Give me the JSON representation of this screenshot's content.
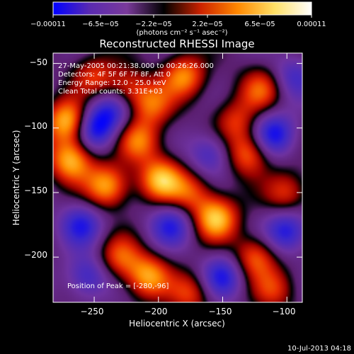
{
  "chart_data": {
    "type": "heatmap",
    "title": "Reconstructed RHESSI Image",
    "xlabel": "Heliocentric X (arcsec)",
    "ylabel": "Heliocentric Y (arcsec)",
    "xlim": [
      -282,
      -88
    ],
    "ylim": [
      -235,
      -42
    ],
    "xticks": [
      -250,
      -200,
      -150,
      -100
    ],
    "xtick_labels": [
      "−250",
      "−200",
      "−150",
      "−100"
    ],
    "yticks": [
      -50,
      -100,
      -150,
      -200
    ],
    "ytick_labels": [
      "−50",
      "−100",
      "−150",
      "−200"
    ],
    "colorbar": {
      "min": -0.00011,
      "max": 0.00011,
      "tick_labels": [
        "−0.00011",
        "−6.5e−05",
        "−2.2e−05",
        "2.2e−05",
        "6.5e−05",
        "0.00011"
      ],
      "unit_label": "(photons cm⁻² s⁻¹ asec⁻²)",
      "colors": [
        "#0000ff",
        "#5a2ab0",
        "#7a3a9a",
        "#000000",
        "#cc2200",
        "#ff8800",
        "#ffe066",
        "#ffffff"
      ]
    },
    "annotations": [
      "27-May-2005 00:21:38.000 to 00:26:26.000",
      "Detectors: 4F 5F 6F 7F 8F, Att 0",
      "Energy Range: 12.0 - 25.0 keV",
      "Clean    Total counts: 3.31E+03"
    ],
    "peak_label": "Position of Peak = [-280,-96]",
    "peak": [
      -280,
      -96
    ],
    "blobs": [
      {
        "x": -270,
        "y": -95,
        "v": 1.0
      },
      {
        "x": -268,
        "y": -125,
        "v": 0.9
      },
      {
        "x": -250,
        "y": -60,
        "v": 0.5
      },
      {
        "x": -240,
        "y": -145,
        "v": 0.85
      },
      {
        "x": -225,
        "y": -70,
        "v": 0.55
      },
      {
        "x": -215,
        "y": -110,
        "v": 0.7
      },
      {
        "x": -205,
        "y": -82,
        "v": 0.6
      },
      {
        "x": -198,
        "y": -140,
        "v": 0.9
      },
      {
        "x": -208,
        "y": -215,
        "v": 0.8
      },
      {
        "x": -230,
        "y": -200,
        "v": 0.6
      },
      {
        "x": -180,
        "y": -60,
        "v": 0.75
      },
      {
        "x": -175,
        "y": -150,
        "v": 0.55
      },
      {
        "x": -155,
        "y": -170,
        "v": 0.95
      },
      {
        "x": -130,
        "y": -120,
        "v": 0.7
      },
      {
        "x": -140,
        "y": -95,
        "v": 0.5
      },
      {
        "x": -120,
        "y": -70,
        "v": 0.6
      },
      {
        "x": -125,
        "y": -200,
        "v": 0.65
      },
      {
        "x": -100,
        "y": -150,
        "v": 0.55
      },
      {
        "x": -110,
        "y": -225,
        "v": 0.5
      },
      {
        "x": -175,
        "y": -228,
        "v": 0.55
      },
      {
        "x": -260,
        "y": -175,
        "v": -0.6
      },
      {
        "x": -250,
        "y": -100,
        "v": -0.8
      },
      {
        "x": -235,
        "y": -85,
        "v": -0.55
      },
      {
        "x": -190,
        "y": -175,
        "v": -0.6
      },
      {
        "x": -160,
        "y": -120,
        "v": -0.5
      },
      {
        "x": -110,
        "y": -105,
        "v": -0.75
      },
      {
        "x": -100,
        "y": -180,
        "v": -0.7
      },
      {
        "x": -150,
        "y": -215,
        "v": -0.65
      },
      {
        "x": -255,
        "y": -215,
        "v": -0.55
      },
      {
        "x": -95,
        "y": -60,
        "v": -0.45
      }
    ]
  },
  "footer": {
    "timestamp": "10-Jul-2013 04:18"
  }
}
